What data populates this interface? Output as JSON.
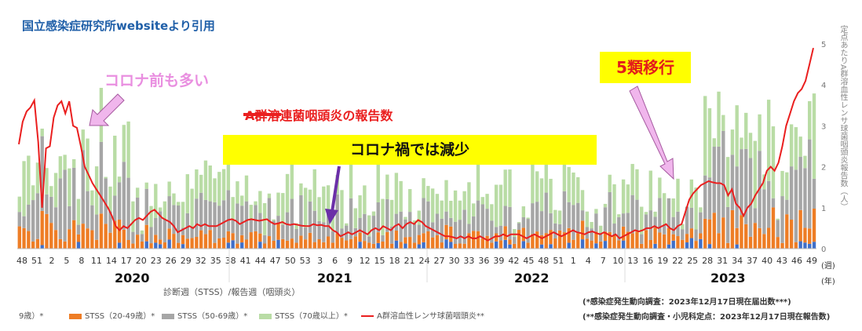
{
  "source_note": "国立感染症研究所websiteより引用",
  "annotations": {
    "precovid": "コロナ前も多い",
    "covid": "コロナ禍では減少",
    "class5": "5類移行"
  },
  "colors": {
    "strep_line": "#ea1f1f",
    "stss_blue": "#3f6fc9",
    "stss_orange": "#ee7d25",
    "stss_gray": "#a6a6a6",
    "stss_lightgreen": "#b9dca5",
    "highlight": "#ffff00",
    "arrow_pink": "#f0b6ec",
    "arrow_purple": "#6b2fa8"
  },
  "chart_data": {
    "type": "bar",
    "stacked": true,
    "legend_placement": "bottom",
    "secondary_axis_label": "定点あたりA群溶血性レンサ球菌咽頭炎報告数（人）",
    "secondary_ylim": [
      0,
      5
    ],
    "secondary_yticks": [
      "0",
      "1",
      "2",
      "3",
      "4",
      "5"
    ],
    "x_week_ticks": [
      "48",
      "51",
      "2",
      "5",
      "8",
      "11",
      "14",
      "17",
      "20",
      "23",
      "26",
      "29",
      "32",
      "35",
      "38",
      "41",
      "44",
      "47",
      "50",
      "53",
      "3",
      "6",
      "9",
      "12",
      "15",
      "18",
      "21",
      "24",
      "27",
      "30",
      "33",
      "36",
      "39",
      "42",
      "45",
      "48",
      "51",
      "1",
      "4",
      "7",
      "10",
      "13",
      "16",
      "19",
      "22",
      "25",
      "28",
      "31",
      "34",
      "37",
      "40",
      "43",
      "46",
      "49"
    ],
    "years": [
      "2020",
      "2021",
      "2022",
      "2023"
    ],
    "x_unit_week": "(週)",
    "x_unit_year": "(年)",
    "xlabel": "診断週（STSS）/報告週（咽頭炎）",
    "legend": [
      {
        "label": "9歳）*",
        "color": "#3f6fc9",
        "kind": "bar"
      },
      {
        "label": "STSS（20-49歳）*",
        "color": "#ee7d25",
        "kind": "bar"
      },
      {
        "label": "STSS（50-69歳）*",
        "color": "#a6a6a6",
        "kind": "bar"
      },
      {
        "label": "STSS（70歳以上）*",
        "color": "#b9dca5",
        "kind": "bar"
      },
      {
        "label": "A群溶血性レンサ球菌咽頭炎**",
        "color": "#ea1f1f",
        "kind": "line"
      }
    ],
    "strep_line_label": "A群溶連菌咽頭炎の報告数",
    "footnotes": [
      "(*感染症発生動向調査：2023年12月17日現在届出数***)",
      "(**感染症発生動向調査・小児科定点：2023年12月17日現在報告数)"
    ],
    "strep_pharyngitis_per_sentinel": [
      2.55,
      3.1,
      3.35,
      3.45,
      3.62,
      2.6,
      1.0,
      2.45,
      2.5,
      3.2,
      3.5,
      3.6,
      3.3,
      3.6,
      3.0,
      2.95,
      2.5,
      2.0,
      1.8,
      1.6,
      1.45,
      1.3,
      1.15,
      1.0,
      0.8,
      0.55,
      0.45,
      0.55,
      0.5,
      0.6,
      0.7,
      0.75,
      0.7,
      0.8,
      0.9,
      0.95,
      0.85,
      0.75,
      0.7,
      0.65,
      0.55,
      0.4,
      0.45,
      0.5,
      0.55,
      0.5,
      0.6,
      0.55,
      0.6,
      0.55,
      0.55,
      0.55,
      0.6,
      0.65,
      0.7,
      0.72,
      0.68,
      0.6,
      0.65,
      0.7,
      0.72,
      0.7,
      0.68,
      0.7,
      0.72,
      0.65,
      0.6,
      0.62,
      0.65,
      0.6,
      0.58,
      0.6,
      0.58,
      0.56,
      0.55,
      0.55,
      0.6,
      0.57,
      0.58,
      0.55,
      0.55,
      0.45,
      0.4,
      0.3,
      0.35,
      0.4,
      0.35,
      0.4,
      0.45,
      0.4,
      0.35,
      0.45,
      0.5,
      0.45,
      0.55,
      0.5,
      0.45,
      0.55,
      0.6,
      0.5,
      0.6,
      0.65,
      0.6,
      0.7,
      0.65,
      0.55,
      0.5,
      0.45,
      0.4,
      0.35,
      0.3,
      0.3,
      0.28,
      0.25,
      0.3,
      0.25,
      0.3,
      0.25,
      0.25,
      0.3,
      0.25,
      0.2,
      0.25,
      0.3,
      0.3,
      0.35,
      0.3,
      0.35,
      0.35,
      0.35,
      0.3,
      0.25,
      0.3,
      0.35,
      0.3,
      0.25,
      0.3,
      0.35,
      0.4,
      0.35,
      0.3,
      0.35,
      0.4,
      0.45,
      0.4,
      0.38,
      0.35,
      0.4,
      0.42,
      0.38,
      0.35,
      0.4,
      0.35,
      0.3,
      0.35,
      0.25,
      0.3,
      0.35,
      0.4,
      0.45,
      0.42,
      0.45,
      0.5,
      0.5,
      0.55,
      0.5,
      0.55,
      0.6,
      0.5,
      0.45,
      0.55,
      0.6,
      0.9,
      1.2,
      1.35,
      1.45,
      1.55,
      1.6,
      1.65,
      1.62,
      1.6,
      1.6,
      1.55,
      1.3,
      1.45,
      1.1,
      1.0,
      0.8,
      1.0,
      1.1,
      1.3,
      1.45,
      1.6,
      1.9,
      2.0,
      1.9,
      2.1,
      2.5,
      3.0,
      3.3,
      3.6,
      3.8,
      3.9,
      4.1,
      4.5,
      4.9
    ]
  }
}
